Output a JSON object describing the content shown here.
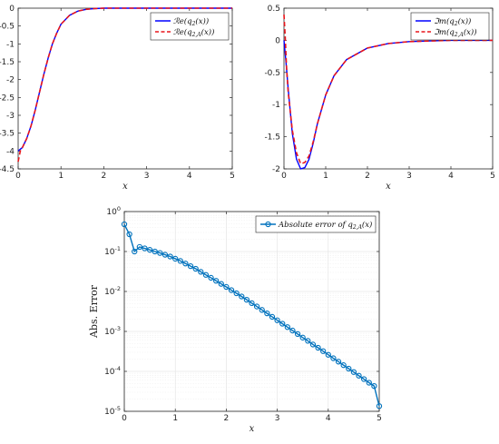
{
  "chart_data": [
    {
      "type": "line",
      "xlabel": "x",
      "ylabel": "",
      "xlim": [
        0,
        5
      ],
      "ylim": [
        -4.5,
        0
      ],
      "xticks": [
        "0",
        "1",
        "2",
        "3",
        "4",
        "5"
      ],
      "yticks": [
        "0",
        "-0.5",
        "-1",
        "-1.5",
        "-2",
        "-2.5",
        "-3",
        "-3.5",
        "-4",
        "-4.5"
      ],
      "legend": "top-right",
      "series": [
        {
          "name": "Re(q2(x))",
          "style": "solid",
          "color": "#0000ff",
          "x": [
            0,
            0.1,
            0.2,
            0.3,
            0.4,
            0.5,
            0.6,
            0.7,
            0.8,
            0.9,
            1.0,
            1.2,
            1.4,
            1.6,
            1.8,
            2.0,
            2.5,
            3.0,
            4.0,
            5.0
          ],
          "y": [
            -4.0,
            -3.9,
            -3.65,
            -3.3,
            -2.85,
            -2.35,
            -1.85,
            -1.4,
            -1.0,
            -0.7,
            -0.45,
            -0.2,
            -0.08,
            -0.03,
            -0.01,
            0,
            0,
            0,
            0,
            0
          ]
        },
        {
          "name": "Re(q2,A(x))",
          "style": "dashed",
          "color": "#e8151b",
          "x": [
            0,
            0.05,
            0.1,
            0.2,
            0.3,
            0.4,
            0.5,
            0.6,
            0.7,
            0.8,
            0.9,
            1.0,
            1.2,
            1.4,
            1.6,
            1.8,
            2.0,
            2.5,
            3.0,
            4.0,
            5.0
          ],
          "y": [
            -4.3,
            -4.0,
            -3.9,
            -3.65,
            -3.3,
            -2.85,
            -2.35,
            -1.85,
            -1.4,
            -1.0,
            -0.7,
            -0.45,
            -0.2,
            -0.08,
            -0.03,
            -0.01,
            0,
            0,
            0,
            0,
            0
          ]
        }
      ]
    },
    {
      "type": "line",
      "xlabel": "x",
      "ylabel": "",
      "xlim": [
        0,
        5
      ],
      "ylim": [
        -2,
        0.5
      ],
      "xticks": [
        "0",
        "1",
        "2",
        "3",
        "4",
        "5"
      ],
      "yticks": [
        "0.5",
        "0",
        "-0.5",
        "-1",
        "-1.5",
        "-2"
      ],
      "legend": "top-right",
      "series": [
        {
          "name": "Im(q2(x))",
          "style": "solid",
          "color": "#0000ff",
          "x": [
            0,
            0.05,
            0.1,
            0.2,
            0.3,
            0.4,
            0.5,
            0.6,
            0.7,
            0.8,
            1.0,
            1.2,
            1.5,
            2.0,
            2.5,
            3.0,
            3.5,
            4.0,
            5.0
          ],
          "y": [
            0.0,
            -0.35,
            -0.75,
            -1.45,
            -1.85,
            -2.0,
            -1.98,
            -1.85,
            -1.6,
            -1.3,
            -0.85,
            -0.55,
            -0.3,
            -0.12,
            -0.05,
            -0.02,
            -0.01,
            0,
            0
          ]
        },
        {
          "name": "Im(q2,A(x))",
          "style": "dashed",
          "color": "#e8151b",
          "x": [
            0,
            0.03,
            0.06,
            0.1,
            0.2,
            0.3,
            0.4,
            0.5,
            0.6,
            0.7,
            0.8,
            1.0,
            1.2,
            1.5,
            2.0,
            2.5,
            3.0,
            3.5,
            4.0,
            5.0
          ],
          "y": [
            0.4,
            0.05,
            -0.4,
            -0.8,
            -1.4,
            -1.75,
            -1.92,
            -1.9,
            -1.8,
            -1.58,
            -1.3,
            -0.85,
            -0.55,
            -0.3,
            -0.12,
            -0.05,
            -0.02,
            -0.01,
            0,
            0
          ]
        }
      ]
    },
    {
      "type": "line",
      "xlabel": "x",
      "ylabel": "Abs. Error",
      "xlim": [
        0,
        5
      ],
      "ylim": [
        1e-05,
        1
      ],
      "yscale": "log",
      "grid": true,
      "xticks": [
        "0",
        "1",
        "2",
        "3",
        "4",
        "5"
      ],
      "yticks": [
        "10^0",
        "10^-1",
        "10^-2",
        "10^-3",
        "10^-4",
        "10^-5"
      ],
      "legend": "top-right",
      "series": [
        {
          "name": "Absolute error of q2,A(x)",
          "style": "solid-circle-markers",
          "color": "#0072bd",
          "x": [
            0,
            0.1,
            0.2,
            0.3,
            0.4,
            0.5,
            0.6,
            0.7,
            0.8,
            0.9,
            1.0,
            1.1,
            1.2,
            1.3,
            1.4,
            1.5,
            1.6,
            1.7,
            1.8,
            1.9,
            2.0,
            2.1,
            2.2,
            2.3,
            2.4,
            2.5,
            2.6,
            2.7,
            2.8,
            2.9,
            3.0,
            3.1,
            3.2,
            3.3,
            3.4,
            3.5,
            3.6,
            3.7,
            3.8,
            3.9,
            4.0,
            4.1,
            4.2,
            4.3,
            4.4,
            4.5,
            4.6,
            4.7,
            4.8,
            4.9,
            5.0
          ],
          "y": [
            0.48,
            0.27,
            0.1,
            0.13,
            0.12,
            0.11,
            0.1,
            0.092,
            0.083,
            0.075,
            0.066,
            0.058,
            0.05,
            0.043,
            0.037,
            0.031,
            0.026,
            0.022,
            0.0185,
            0.0155,
            0.013,
            0.0108,
            0.009,
            0.0075,
            0.0062,
            0.0051,
            0.0042,
            0.00345,
            0.00283,
            0.00232,
            0.0019,
            0.00156,
            0.00128,
            0.00105,
            0.00086,
            0.0007,
            0.00058,
            0.00047,
            0.00039,
            0.00032,
            0.00026,
            0.000213,
            0.000175,
            0.000143,
            0.000117,
            9.6e-05,
            7.8e-05,
            6.4e-05,
            5.2e-05,
            4.3e-05,
            1.35e-05
          ]
        }
      ]
    }
  ]
}
